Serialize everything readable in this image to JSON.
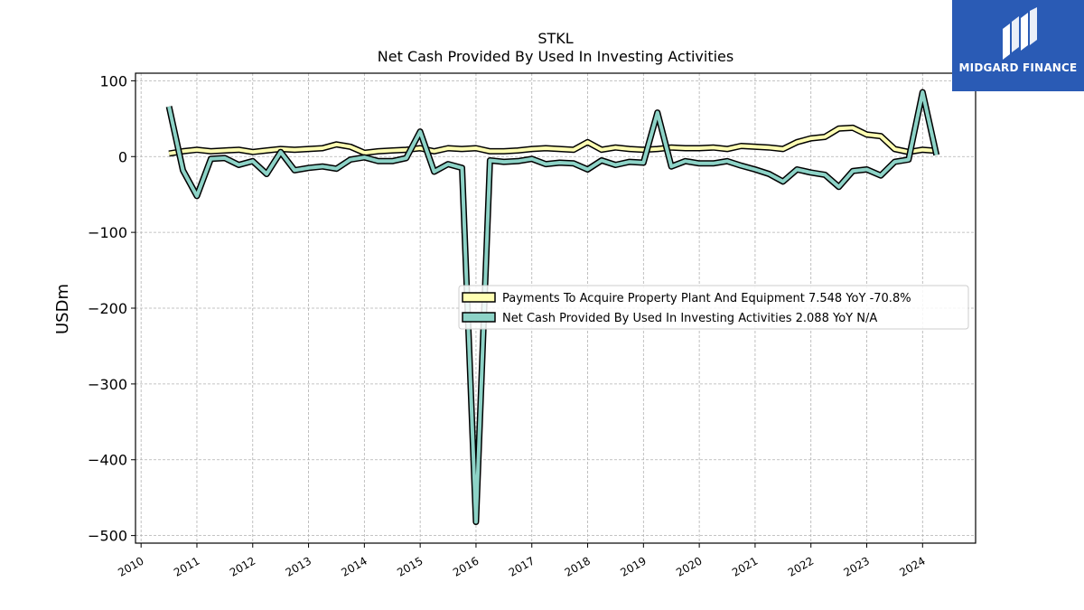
{
  "logo": {
    "text": "MIDGARD FINANCE",
    "icon": "mf-monogram-icon",
    "background": "#2a5bb5"
  },
  "chart_data": {
    "type": "line",
    "title": "STKL",
    "subtitle": "Net Cash Provided By Used In Investing Activities",
    "ylabel": "USDm",
    "xlabel": "",
    "ylim": [
      -510,
      110
    ],
    "xlim": [
      2009.9,
      2024.95
    ],
    "yticks": [
      100,
      0,
      -100,
      -200,
      -300,
      -400,
      -500
    ],
    "ytick_labels": [
      "100",
      "0",
      "−100",
      "−200",
      "−300",
      "−400",
      "−500"
    ],
    "xticks": [
      2010,
      2011,
      2012,
      2013,
      2014,
      2015,
      2016,
      2017,
      2018,
      2019,
      2020,
      2021,
      2022,
      2023,
      2024
    ],
    "xtick_labels": [
      "2010",
      "2011",
      "2012",
      "2013",
      "2014",
      "2015",
      "2016",
      "2017",
      "2018",
      "2019",
      "2020",
      "2021",
      "2022",
      "2023",
      "2024"
    ],
    "grid": true,
    "legend_position": "center-right",
    "x": [
      2010.5,
      2010.75,
      2011.0,
      2011.25,
      2011.5,
      2011.75,
      2012.0,
      2012.25,
      2012.5,
      2012.75,
      2013.0,
      2013.25,
      2013.5,
      2013.75,
      2014.0,
      2014.25,
      2014.5,
      2014.75,
      2015.0,
      2015.25,
      2015.5,
      2015.75,
      2016.0,
      2016.25,
      2016.5,
      2016.75,
      2017.0,
      2017.25,
      2017.5,
      2017.75,
      2018.0,
      2018.25,
      2018.5,
      2018.75,
      2019.0,
      2019.25,
      2019.5,
      2019.75,
      2020.0,
      2020.25,
      2020.5,
      2020.75,
      2021.0,
      2021.25,
      2021.5,
      2021.75,
      2022.0,
      2022.25,
      2022.5,
      2022.75,
      2023.0,
      2023.25,
      2023.5,
      2023.75,
      2024.0,
      2024.25
    ],
    "series": [
      {
        "name": "Payments To Acquire Property Plant And Equipment",
        "legend_label": "Payments To Acquire Property Plant And Equipment  7.548 YoY -70.8%",
        "color": "#ffffb3",
        "values": [
          4,
          7,
          9,
          7,
          8,
          9,
          6,
          8,
          10,
          9,
          10,
          11,
          16,
          13,
          5,
          7,
          8,
          9,
          11,
          7,
          11,
          10,
          11,
          7,
          7,
          8,
          10,
          11,
          10,
          9,
          19,
          9,
          12,
          10,
          9,
          10,
          12,
          11,
          11,
          12,
          10,
          14,
          13,
          12,
          10,
          19,
          24,
          26,
          37,
          38,
          29,
          27,
          10,
          6,
          9,
          7.548
        ]
      },
      {
        "name": "Net Cash Provided By Used In Investing Activities",
        "legend_label": "Net Cash Provided By Used In Investing Activities  2.088 YoY N/A",
        "color": "#8dd3c7",
        "values": [
          66,
          -18,
          -52,
          -3,
          -2,
          -11,
          -6,
          -23,
          6,
          -18,
          -15,
          -13,
          -16,
          -4,
          -1,
          -6,
          -6,
          -2,
          33,
          -20,
          -10,
          -15,
          -482,
          -5,
          -7,
          -6,
          -3,
          -10,
          -8,
          -9,
          -17,
          -5,
          -11,
          -7,
          -8,
          58,
          -13,
          -6,
          -9,
          -9,
          -6,
          -12,
          -17,
          -23,
          -33,
          -17,
          -21,
          -24,
          -40,
          -19,
          -17,
          -25,
          -7,
          -4,
          85,
          2.088
        ]
      }
    ]
  }
}
